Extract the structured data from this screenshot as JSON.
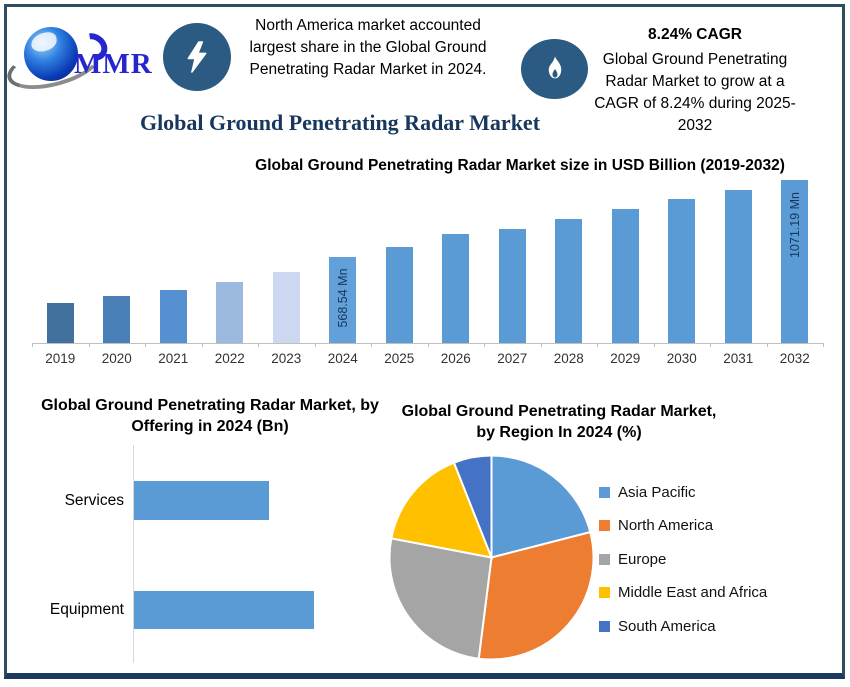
{
  "header": {
    "logo_text": "MMR",
    "headline": "North America market accounted largest share in the Global Ground Penetrating Radar Market in 2024.",
    "cagr_title": "8.24% CAGR",
    "cagr_text": "Global Ground Penetrating Radar Market to grow at a CAGR of 8.24% during 2025-2032",
    "badge_color": "#2b5a82"
  },
  "main_title": "Global Ground Penetrating Radar Market",
  "chart_data": [
    {
      "id": "market-size",
      "type": "bar",
      "title": "Global Ground Penetrating Radar Market size in USD Billion (2019-2032)",
      "categories": [
        "2019",
        "2020",
        "2021",
        "2022",
        "2023",
        "2024",
        "2025",
        "2026",
        "2027",
        "2028",
        "2029",
        "2030",
        "2031",
        "2032"
      ],
      "values": [
        260,
        308,
        350,
        400,
        467,
        568.54,
        630,
        715,
        752,
        816,
        882,
        948,
        1009,
        1071.19
      ],
      "unit": "Mn",
      "point_labels": [
        {
          "category": "2024",
          "label": "568.54 Mn"
        },
        {
          "category": "2032",
          "label": "1071.19 Mn"
        }
      ],
      "bar_colors": [
        "#41719c",
        "#4a80b7",
        "#5590d0",
        "#9cb9e0",
        "#cbd8ef",
        "#61a0d9",
        "#5b9bd5",
        "#5b9bd5",
        "#5b9bd5",
        "#5b9bd5",
        "#5b9bd5",
        "#5b9bd5",
        "#5b9bd5",
        "#5b9bd5"
      ],
      "ylim": [
        0,
        1120
      ],
      "grid": false,
      "legend_position": "none"
    },
    {
      "id": "offering",
      "type": "bar",
      "orientation": "horizontal",
      "title": "Global Ground Penetrating Radar Market, by Offering in 2024 (Bn)",
      "categories": [
        "Services",
        "Equipment"
      ],
      "relative_values": [
        0.75,
        1.0
      ],
      "bar_color": "#5b9bd5",
      "legend_position": "none"
    },
    {
      "id": "region",
      "type": "pie",
      "title": "Global Ground Penetrating Radar Market, by Region In 2024 (%)",
      "labels": [
        "Asia Pacific",
        "North America",
        "Europe",
        "Middle East and Africa",
        "South America"
      ],
      "values": [
        21,
        31,
        26,
        16,
        6
      ],
      "colors": [
        "#5b9bd5",
        "#ed7d31",
        "#a5a5a5",
        "#ffc000",
        "#4472c4"
      ],
      "legend_position": "right"
    }
  ],
  "colors": {
    "frame_border": "#2c4f60",
    "frame_bottom": "#1b3a5e",
    "title_navy": "#17375d",
    "logo_blue": "#2526cf"
  }
}
